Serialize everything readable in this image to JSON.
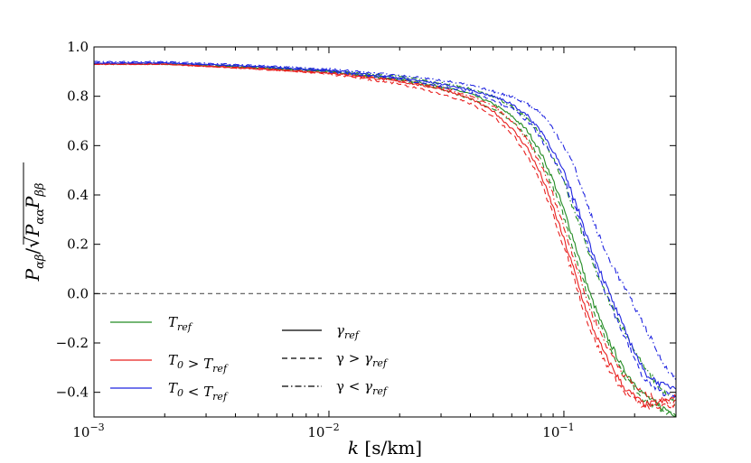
{
  "chart_data": {
    "type": "line",
    "title": "",
    "xlabel": "k [s/km]",
    "ylabel": "P_{αβ}/√(P_{αα}P_{ββ})",
    "xscale": "log",
    "xlim": [
      0.001,
      0.3
    ],
    "ylim": [
      -0.5,
      1.0
    ],
    "x_ticks": [
      {
        "value": 0.001,
        "label": "10^-3"
      },
      {
        "value": 0.01,
        "label": "10^-2"
      },
      {
        "value": 0.1,
        "label": "10^-1"
      }
    ],
    "y_ticks": [
      {
        "value": 1.0,
        "label": "1.0"
      },
      {
        "value": 0.8,
        "label": "0.8"
      },
      {
        "value": 0.6,
        "label": "0.6"
      },
      {
        "value": 0.4,
        "label": "0.4"
      },
      {
        "value": 0.2,
        "label": "0.2"
      },
      {
        "value": 0.0,
        "label": "0.0"
      },
      {
        "value": -0.2,
        "label": "−0.2"
      },
      {
        "value": -0.4,
        "label": "−0.4"
      }
    ],
    "reference_line": {
      "y": 0.0,
      "style": "dashed",
      "color": "#555555"
    },
    "legend": {
      "placement": "lower-left",
      "colors": [
        {
          "label": "T_ref",
          "color": "#228b22"
        },
        {
          "label": "T_0 > T_ref",
          "color": "#e8201f"
        },
        {
          "label": "T_0 < T_ref",
          "color": "#1f24e0"
        }
      ],
      "styles": [
        {
          "label": "γ_ref",
          "dash": "solid"
        },
        {
          "label": "γ > γ_ref",
          "dash": "dashed"
        },
        {
          "label": "γ < γ_ref",
          "dash": "dashdot"
        }
      ]
    },
    "series": [
      {
        "name": "T_ref, γ_ref",
        "color": "#228b22",
        "dash": "solid",
        "x": [
          0.001,
          0.002,
          0.005,
          0.01,
          0.02,
          0.03,
          0.04,
          0.05,
          0.06,
          0.07,
          0.08,
          0.09,
          0.1,
          0.11,
          0.12,
          0.13,
          0.15,
          0.18,
          0.22,
          0.26,
          0.3
        ],
        "y": [
          0.93,
          0.93,
          0.915,
          0.9,
          0.87,
          0.84,
          0.81,
          0.77,
          0.72,
          0.66,
          0.57,
          0.46,
          0.34,
          0.22,
          0.1,
          -0.01,
          -0.16,
          -0.31,
          -0.41,
          -0.46,
          -0.49
        ]
      },
      {
        "name": "T_ref, γ > γ_ref",
        "color": "#228b22",
        "dash": "dashed",
        "x": [
          0.001,
          0.002,
          0.005,
          0.01,
          0.02,
          0.03,
          0.04,
          0.05,
          0.06,
          0.07,
          0.08,
          0.09,
          0.1,
          0.11,
          0.12,
          0.13,
          0.15,
          0.18,
          0.22,
          0.26,
          0.3
        ],
        "y": [
          0.93,
          0.93,
          0.915,
          0.9,
          0.865,
          0.83,
          0.79,
          0.75,
          0.7,
          0.63,
          0.54,
          0.43,
          0.31,
          0.18,
          0.06,
          -0.04,
          -0.18,
          -0.33,
          -0.43,
          -0.47,
          -0.5
        ]
      },
      {
        "name": "T_ref, γ < γ_ref",
        "color": "#228b22",
        "dash": "dashdot",
        "x": [
          0.001,
          0.002,
          0.005,
          0.01,
          0.02,
          0.03,
          0.04,
          0.05,
          0.06,
          0.07,
          0.08,
          0.09,
          0.1,
          0.11,
          0.12,
          0.13,
          0.15,
          0.18,
          0.22,
          0.26,
          0.3
        ],
        "y": [
          0.93,
          0.935,
          0.92,
          0.905,
          0.88,
          0.855,
          0.83,
          0.8,
          0.76,
          0.71,
          0.64,
          0.55,
          0.45,
          0.34,
          0.24,
          0.14,
          0.0,
          -0.15,
          -0.3,
          -0.39,
          -0.45
        ]
      },
      {
        "name": "T_0 > T_ref, γ_ref",
        "color": "#e8201f",
        "dash": "solid",
        "x": [
          0.001,
          0.002,
          0.005,
          0.01,
          0.02,
          0.03,
          0.04,
          0.05,
          0.06,
          0.07,
          0.08,
          0.09,
          0.1,
          0.11,
          0.12,
          0.13,
          0.15,
          0.18,
          0.22,
          0.26,
          0.3
        ],
        "y": [
          0.93,
          0.93,
          0.91,
          0.895,
          0.86,
          0.83,
          0.79,
          0.74,
          0.67,
          0.59,
          0.48,
          0.35,
          0.22,
          0.1,
          -0.02,
          -0.12,
          -0.25,
          -0.38,
          -0.45,
          -0.44,
          -0.42
        ]
      },
      {
        "name": "T_0 > T_ref, γ > γ_ref",
        "color": "#e8201f",
        "dash": "dashed",
        "x": [
          0.001,
          0.002,
          0.005,
          0.01,
          0.02,
          0.03,
          0.04,
          0.05,
          0.06,
          0.07,
          0.08,
          0.09,
          0.1,
          0.11,
          0.12,
          0.13,
          0.15,
          0.18,
          0.22,
          0.26,
          0.3
        ],
        "y": [
          0.93,
          0.93,
          0.91,
          0.89,
          0.85,
          0.81,
          0.77,
          0.72,
          0.65,
          0.56,
          0.45,
          0.32,
          0.19,
          0.07,
          -0.05,
          -0.15,
          -0.28,
          -0.4,
          -0.46,
          -0.46,
          -0.45
        ]
      },
      {
        "name": "T_0 > T_ref, γ < γ_ref",
        "color": "#e8201f",
        "dash": "dashdot",
        "x": [
          0.001,
          0.002,
          0.005,
          0.01,
          0.02,
          0.03,
          0.04,
          0.05,
          0.06,
          0.07,
          0.08,
          0.09,
          0.1,
          0.11,
          0.12,
          0.13,
          0.15,
          0.18,
          0.22,
          0.26,
          0.3
        ],
        "y": [
          0.93,
          0.93,
          0.915,
          0.895,
          0.865,
          0.835,
          0.8,
          0.76,
          0.7,
          0.62,
          0.52,
          0.4,
          0.27,
          0.15,
          0.03,
          -0.07,
          -0.2,
          -0.33,
          -0.41,
          -0.43,
          -0.44
        ]
      },
      {
        "name": "T_0 < T_ref, γ_ref",
        "color": "#1f24e0",
        "dash": "solid",
        "x": [
          0.001,
          0.002,
          0.005,
          0.01,
          0.02,
          0.03,
          0.04,
          0.05,
          0.06,
          0.07,
          0.08,
          0.09,
          0.1,
          0.11,
          0.12,
          0.13,
          0.15,
          0.18,
          0.22,
          0.26,
          0.3
        ],
        "y": [
          0.935,
          0.935,
          0.92,
          0.905,
          0.875,
          0.85,
          0.825,
          0.8,
          0.77,
          0.72,
          0.66,
          0.58,
          0.49,
          0.39,
          0.29,
          0.19,
          0.04,
          -0.14,
          -0.32,
          -0.37,
          -0.38
        ]
      },
      {
        "name": "T_0 < T_ref, γ > γ_ref",
        "color": "#1f24e0",
        "dash": "dashed",
        "x": [
          0.001,
          0.002,
          0.005,
          0.01,
          0.02,
          0.03,
          0.04,
          0.05,
          0.06,
          0.07,
          0.08,
          0.09,
          0.1,
          0.11,
          0.12,
          0.13,
          0.15,
          0.18,
          0.22,
          0.26,
          0.3
        ],
        "y": [
          0.935,
          0.935,
          0.92,
          0.9,
          0.87,
          0.84,
          0.815,
          0.785,
          0.75,
          0.7,
          0.63,
          0.55,
          0.46,
          0.36,
          0.26,
          0.16,
          0.01,
          -0.17,
          -0.35,
          -0.4,
          -0.41
        ]
      },
      {
        "name": "T_0 < T_ref, γ < γ_ref",
        "color": "#1f24e0",
        "dash": "dashdot",
        "x": [
          0.001,
          0.002,
          0.005,
          0.01,
          0.02,
          0.03,
          0.04,
          0.05,
          0.06,
          0.07,
          0.08,
          0.09,
          0.1,
          0.11,
          0.12,
          0.13,
          0.15,
          0.18,
          0.22,
          0.26,
          0.3
        ],
        "y": [
          0.94,
          0.94,
          0.925,
          0.91,
          0.885,
          0.865,
          0.845,
          0.82,
          0.8,
          0.77,
          0.73,
          0.67,
          0.6,
          0.52,
          0.42,
          0.32,
          0.17,
          0.03,
          -0.13,
          -0.27,
          -0.35
        ]
      }
    ]
  }
}
